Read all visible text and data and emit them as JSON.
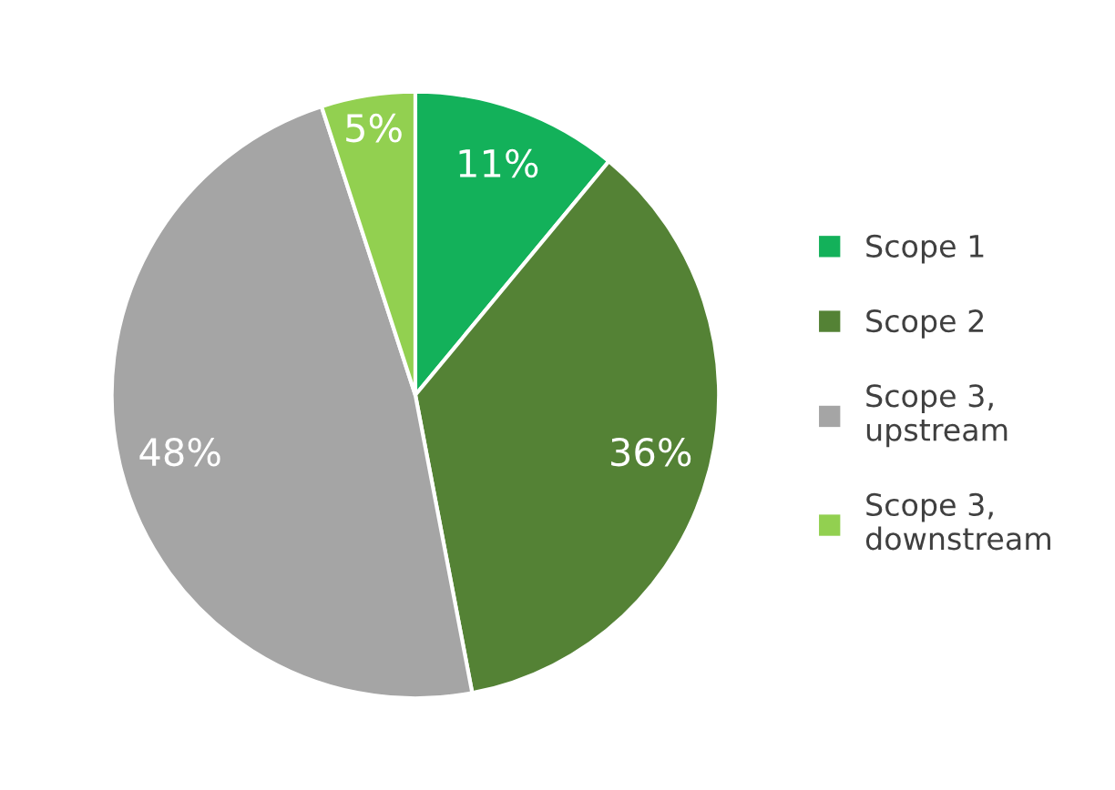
{
  "chart_data": {
    "type": "pie",
    "categories": [
      "Scope 1",
      "Scope 2",
      "Scope 3, upstream",
      "Scope 3, downstream"
    ],
    "values": [
      11,
      36,
      48,
      5
    ],
    "colors": [
      "#13b15a",
      "#548235",
      "#a5a5a5",
      "#92d050"
    ],
    "value_labels": [
      "11%",
      "36%",
      "48%",
      "5%"
    ],
    "legend": "right"
  }
}
